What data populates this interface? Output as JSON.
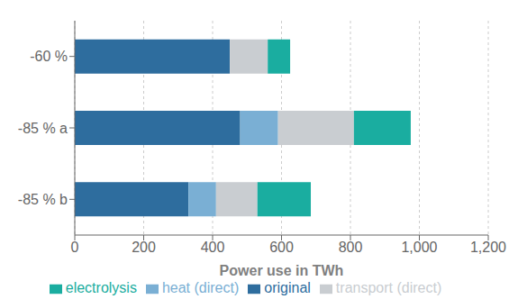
{
  "chart_data": {
    "type": "bar",
    "orientation": "horizontal",
    "stacked": true,
    "categories": [
      "-85 % b",
      "-85 % a",
      "-60 %"
    ],
    "series": [
      {
        "name": "original",
        "color": "#2e6d9e",
        "values": [
          330,
          480,
          450
        ]
      },
      {
        "name": "heat (direct)",
        "color": "#7aafd4",
        "values": [
          80,
          110,
          0
        ]
      },
      {
        "name": "transport (direct)",
        "color": "#c9cdd1",
        "values": [
          120,
          220,
          110
        ]
      },
      {
        "name": "electrolysis",
        "color": "#1aada0",
        "values": [
          155,
          165,
          65
        ]
      }
    ],
    "xlabel": "Power use in TWh",
    "xlim": [
      0,
      1200
    ],
    "xticks": [
      0,
      200,
      400,
      600,
      800,
      {
        "value": 1000,
        "label": "1,000"
      },
      {
        "value": 1200,
        "label": "1,200"
      }
    ],
    "grid": true,
    "legend": "bottom"
  }
}
